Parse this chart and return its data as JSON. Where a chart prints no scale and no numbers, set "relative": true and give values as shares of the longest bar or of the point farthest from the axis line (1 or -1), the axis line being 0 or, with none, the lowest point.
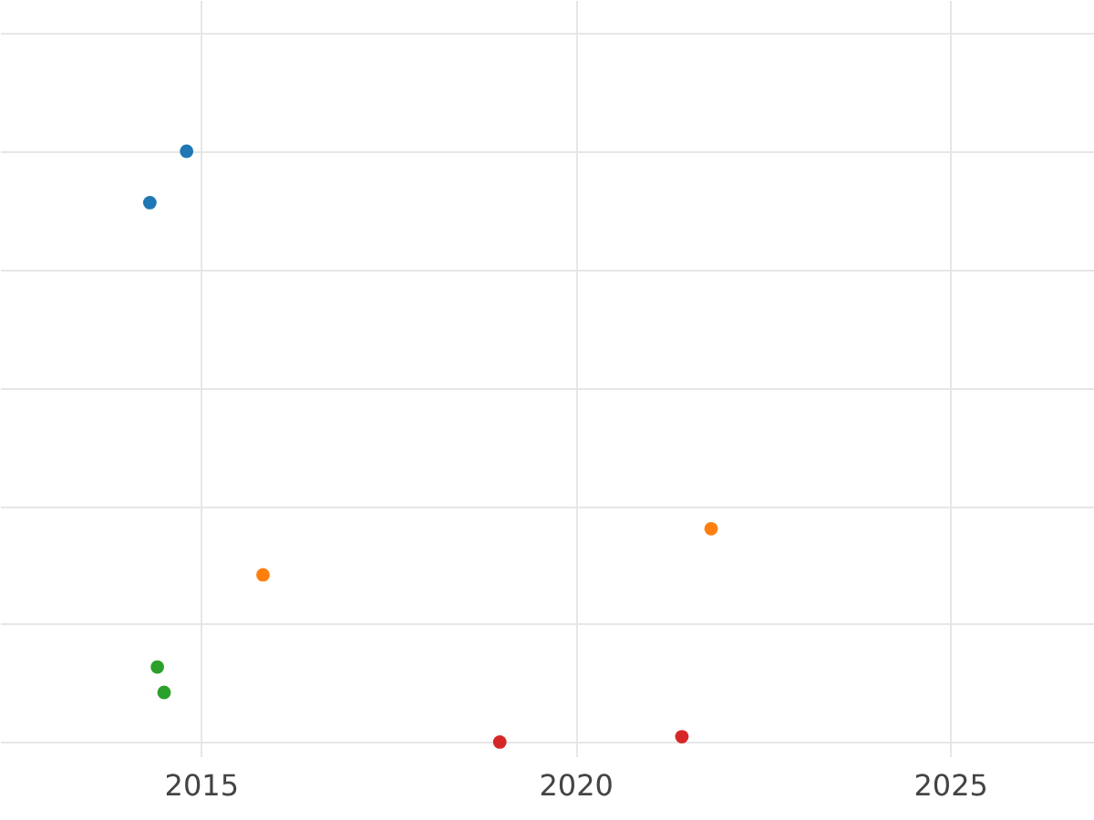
{
  "chart_data": {
    "type": "scatter",
    "relative": true,
    "grid": true,
    "legend": false,
    "marker": "circle",
    "tick_labels": "x",
    "xlim": [
      2012.32,
      2026.92
    ],
    "xticks": [
      2015,
      2020,
      2025
    ],
    "series": [
      {
        "color": "#1f77b4",
        "x": [
          2014.81,
          2014.32
        ],
        "values": [
          1,
          0.913
        ]
      },
      {
        "color": "#ff7f0e",
        "x": [
          2015.83,
          2021.81
        ],
        "values": [
          0.283,
          0.361
        ]
      },
      {
        "color": "#2ca02c",
        "x": [
          2014.42,
          2014.51
        ],
        "values": [
          0.127,
          0.084
        ]
      },
      {
        "color": "#d62728",
        "x": [
          2018.99,
          2021.42
        ],
        "values": [
          0,
          0.009
        ]
      }
    ]
  }
}
